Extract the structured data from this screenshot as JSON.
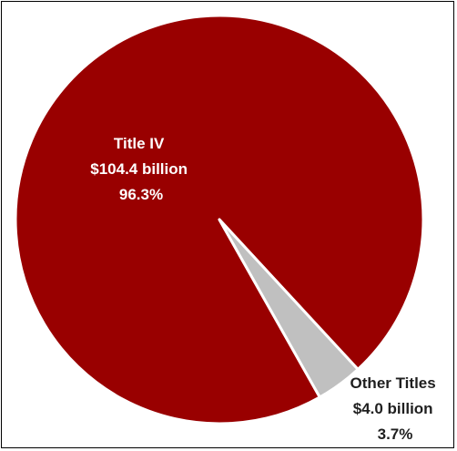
{
  "chart_data": {
    "type": "pie",
    "title": "",
    "slices": [
      {
        "label": "Title IV",
        "amount": "$104.4 billion",
        "percent_label": "96.3%",
        "value": 104.4,
        "percent": 96.3,
        "color": "#990000",
        "label_color": "#ffffff"
      },
      {
        "label": "Other Titles",
        "amount": "$4.0 billion",
        "percent_label": "3.7%",
        "value": 4.0,
        "percent": 3.7,
        "color": "#c0c0c0",
        "label_color": "#1f1f1f"
      }
    ],
    "legend": "none"
  }
}
